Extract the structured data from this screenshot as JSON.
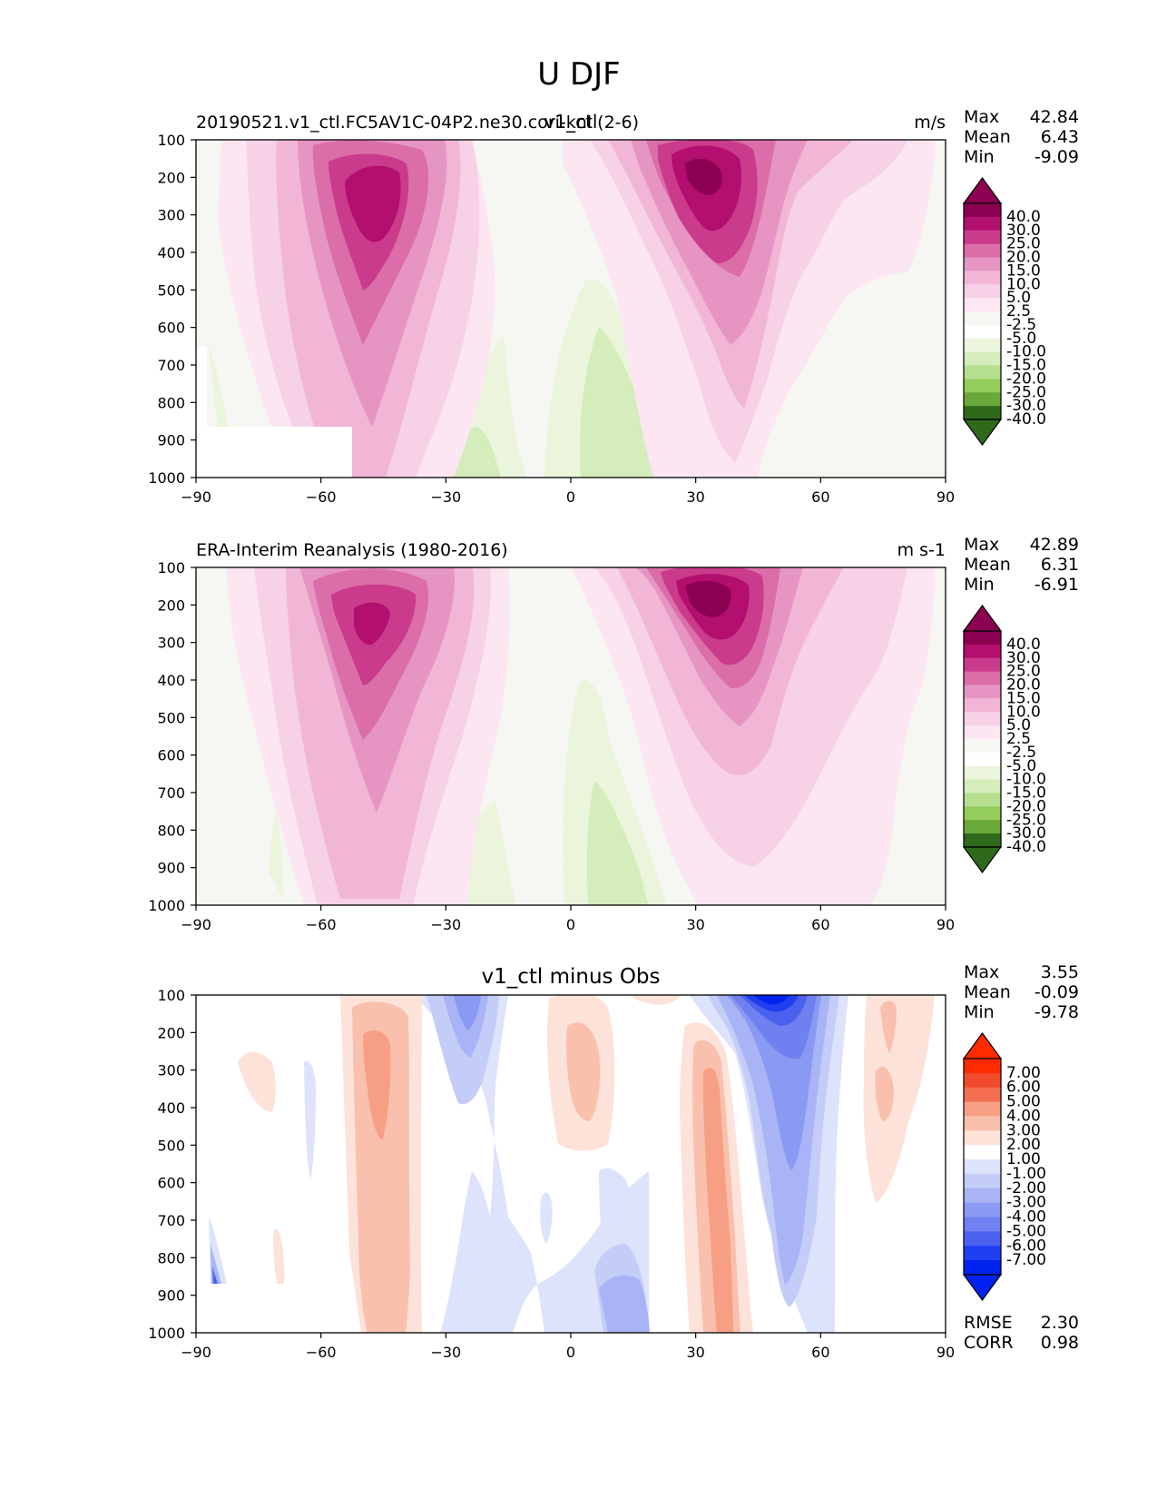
{
  "suptitle": "U DJF",
  "colors": {
    "background": "#ffffff",
    "axes_face": "#f6f6f3",
    "pink_scale": [
      "#fbe6f1",
      "#f7d1e6",
      "#f1b6d6",
      "#e695c2",
      "#db6ea8",
      "#cb3b8b",
      "#b30f6f",
      "#8c0051"
    ],
    "green_scale": [
      "#eaf5dc",
      "#d4edbb",
      "#b5de8e",
      "#94cd5c",
      "#6aa839",
      "#2f6a1c"
    ],
    "red_scale": [
      "#fde2d9",
      "#f9c0ad",
      "#f79f84",
      "#f46f4f",
      "#f04a2a",
      "#ff2a00"
    ],
    "blue_scale": [
      "#dde3fb",
      "#c4cdf8",
      "#a8b4f5",
      "#8a99f2",
      "#6f80f0",
      "#4a61ef",
      "#1e3ef0",
      "#0022ee"
    ]
  },
  "panels": [
    {
      "id": "model",
      "title_left": "20190521.v1_ctl.FC5AV1C-04P2.ne30.cori-knl (2-6)",
      "title_center": "v1_ctl",
      "title_right": "m/s",
      "stats": [
        {
          "label": "Max",
          "value": "42.84"
        },
        {
          "label": "Mean",
          "value": "6.43"
        },
        {
          "label": "Min",
          "value": "-9.09"
        }
      ],
      "colorbar": {
        "type": "diverging-pink-green",
        "tick_labels": [
          "40.0",
          "30.0",
          "25.0",
          "20.0",
          "15.0",
          "10.0",
          "5.0",
          "2.5",
          "-2.5",
          "-5.0",
          "-10.0",
          "-15.0",
          "-20.0",
          "-25.0",
          "-30.0",
          "-40.0"
        ]
      }
    },
    {
      "id": "obs",
      "title_left": "ERA-Interim Reanalysis (1980-2016)",
      "title_center": "",
      "title_right": "m s-1",
      "stats": [
        {
          "label": "Max",
          "value": "42.89"
        },
        {
          "label": "Mean",
          "value": "6.31"
        },
        {
          "label": "Min",
          "value": "-6.91"
        }
      ],
      "colorbar": {
        "type": "diverging-pink-green",
        "tick_labels": [
          "40.0",
          "30.0",
          "25.0",
          "20.0",
          "15.0",
          "10.0",
          "5.0",
          "2.5",
          "-2.5",
          "-5.0",
          "-10.0",
          "-15.0",
          "-20.0",
          "-25.0",
          "-30.0",
          "-40.0"
        ]
      }
    },
    {
      "id": "diff",
      "title_left": "",
      "title_center": "v1_ctl minus Obs",
      "title_right": "",
      "stats": [
        {
          "label": "Max",
          "value": "3.55"
        },
        {
          "label": "Mean",
          "value": "-0.09"
        },
        {
          "label": "Min",
          "value": "-9.78"
        }
      ],
      "extra_stats": [
        {
          "label": "RMSE",
          "value": "2.30"
        },
        {
          "label": "CORR",
          "value": "0.98"
        }
      ],
      "colorbar": {
        "type": "diverging-red-blue",
        "tick_labels": [
          "7.00",
          "6.00",
          "5.00",
          "4.00",
          "3.00",
          "2.00",
          "1.00",
          "-1.00",
          "-2.00",
          "-3.00",
          "-4.00",
          "-5.00",
          "-6.00",
          "-7.00"
        ]
      }
    }
  ],
  "chart_data": [
    {
      "type": "heatmap",
      "title": "v1_ctl",
      "xlim": [
        -90,
        90
      ],
      "ylim": [
        1000,
        100
      ],
      "x_ticks": [
        "−90",
        "−60",
        "−30",
        "0",
        "30",
        "60",
        "90"
      ],
      "y_ticks": [
        "100",
        "200",
        "300",
        "400",
        "500",
        "600",
        "700",
        "800",
        "900",
        "1000"
      ],
      "features": [
        {
          "kind": "jet",
          "lat": -45,
          "pressure": 250,
          "max_value": 35
        },
        {
          "kind": "jet",
          "lat": 32,
          "pressure": 200,
          "max_value": 42.84
        },
        {
          "kind": "easterly",
          "lat": 8,
          "pressure": 850,
          "min_value": -7
        }
      ],
      "max": 42.84,
      "mean": 6.43,
      "min": -9.09
    },
    {
      "type": "heatmap",
      "title": "ERA-Interim Reanalysis (1980-2016)",
      "xlim": [
        -90,
        90
      ],
      "ylim": [
        1000,
        100
      ],
      "x_ticks": [
        "−90",
        "−60",
        "−30",
        "0",
        "30",
        "60",
        "90"
      ],
      "y_ticks": [
        "100",
        "200",
        "300",
        "400",
        "500",
        "600",
        "700",
        "800",
        "900",
        "1000"
      ],
      "features": [
        {
          "kind": "jet",
          "lat": -48,
          "pressure": 250,
          "max_value": 32
        },
        {
          "kind": "jet",
          "lat": 31,
          "pressure": 200,
          "max_value": 42.89
        },
        {
          "kind": "easterly",
          "lat": 8,
          "pressure": 850,
          "min_value": -6.91
        }
      ],
      "max": 42.89,
      "mean": 6.31,
      "min": -6.91
    },
    {
      "type": "heatmap",
      "title": "v1_ctl minus Obs",
      "xlim": [
        -90,
        90
      ],
      "ylim": [
        1000,
        100
      ],
      "x_ticks": [
        "−90",
        "−60",
        "−30",
        "0",
        "30",
        "60",
        "90"
      ],
      "y_ticks": [
        "100",
        "200",
        "300",
        "400",
        "500",
        "600",
        "700",
        "800",
        "900",
        "1000"
      ],
      "features": [
        {
          "kind": "positive",
          "lat": -44,
          "pressure": 400,
          "value": 3
        },
        {
          "kind": "positive",
          "lat": 35,
          "pressure": 500,
          "value": 3.55
        },
        {
          "kind": "negative",
          "lat": 45,
          "pressure": 100,
          "value": -9.78
        },
        {
          "kind": "negative",
          "lat": -25,
          "pressure": 150,
          "value": -4
        }
      ],
      "max": 3.55,
      "mean": -0.09,
      "min": -9.78,
      "rmse": 2.3,
      "corr": 0.98
    }
  ]
}
